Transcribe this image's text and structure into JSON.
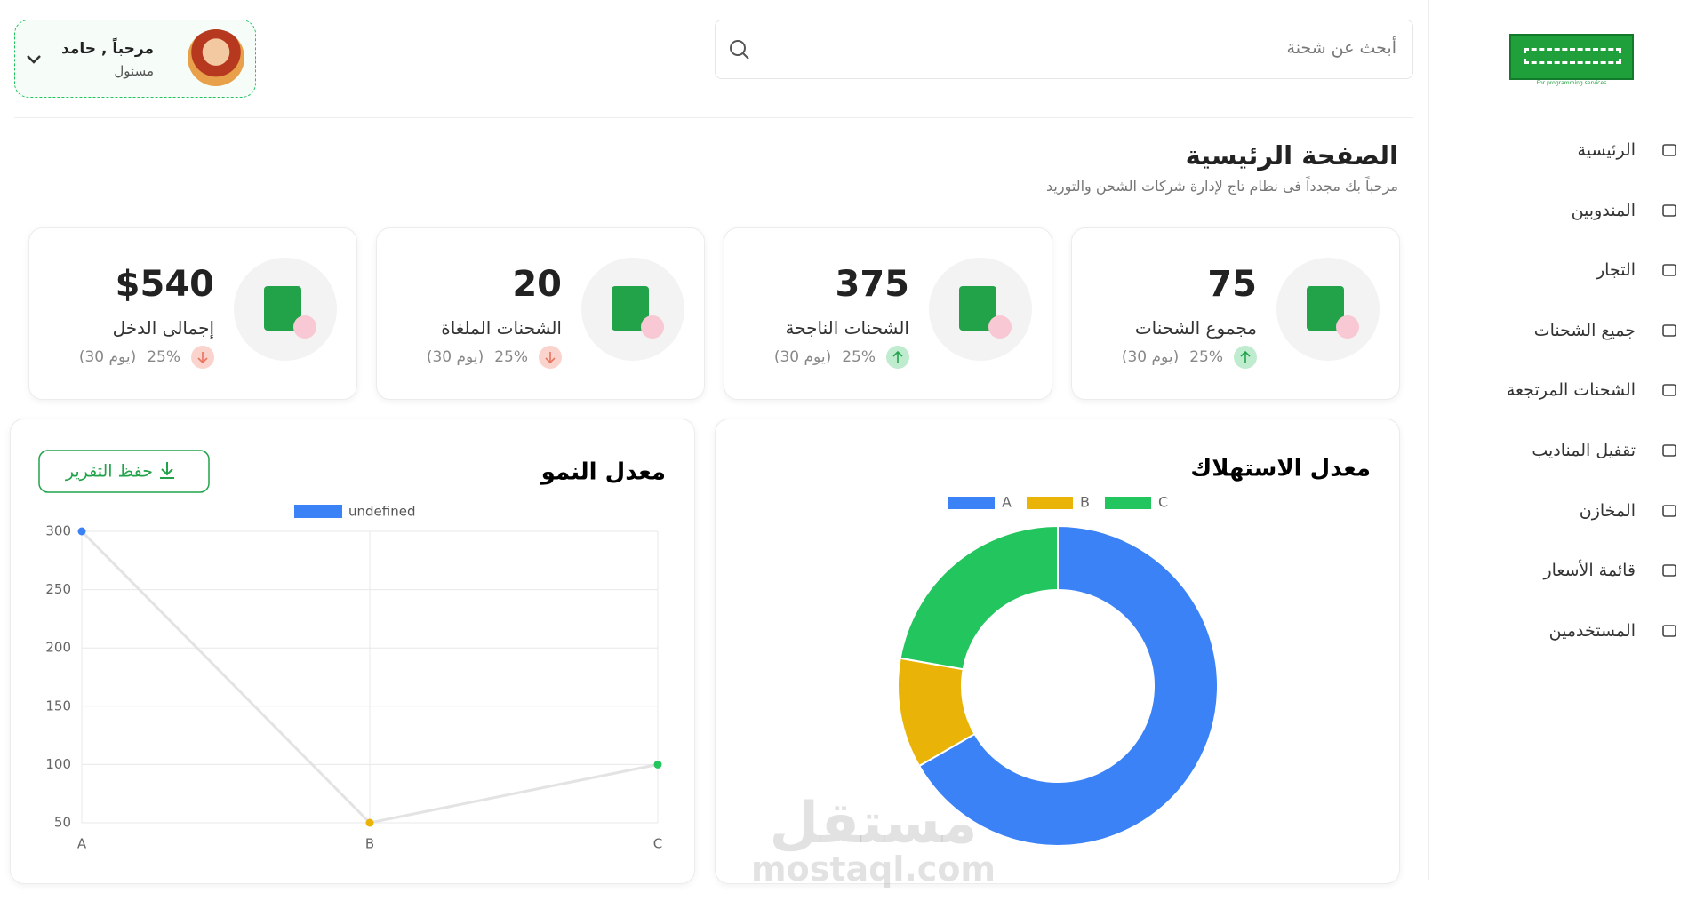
{
  "sidebar": {
    "logo_caption": "For programming services",
    "nav": [
      "الرئيسية",
      "المندوبين",
      "التجار",
      "جميع الشحنات",
      "الشحنات المرتجعة",
      "تقفيل المناديب",
      "المخازن",
      "قائمة الأسعار",
      "المستخدمين"
    ]
  },
  "header": {
    "search_placeholder": "أبحث عن شحنة",
    "user_name": "مرحباً , حامد",
    "user_role": "مسئول"
  },
  "page": {
    "title": "الصفحة الرئيسية",
    "subtitle": "مرحباً بك مجدداً فى نظام تاج لإدارة شركات الشحن والتوريد"
  },
  "stats": [
    {
      "value": "75",
      "label": "مجموع الشحنات",
      "change": "25%",
      "period": "(30 يوم)",
      "trend": "up"
    },
    {
      "value": "375",
      "label": "الشحنات الناجحة",
      "change": "25%",
      "period": "(30 يوم)",
      "trend": "up"
    },
    {
      "value": "20",
      "label": "الشحنات الملغاة",
      "change": "25%",
      "period": "(30 يوم)",
      "trend": "down"
    },
    {
      "value": "$540",
      "label": "إجمالى الدخل",
      "change": "25%",
      "period": "(30 يوم)",
      "trend": "down"
    }
  ],
  "chart_data": [
    {
      "type": "pie",
      "title": "معدل الاستهلاك",
      "categories": [
        "A",
        "B",
        "C"
      ],
      "values": [
        300,
        50,
        100
      ],
      "colors": [
        "#3b82f6",
        "#eab308",
        "#22c55e"
      ],
      "donut": true
    },
    {
      "type": "line",
      "title": "معدل النمو",
      "button": "حفظ التقرير",
      "categories": [
        "A",
        "B",
        "C"
      ],
      "series": [
        {
          "name": "undefined",
          "color": "#3b82f6",
          "values": [
            300,
            50,
            100
          ],
          "point_colors": [
            "#3b82f6",
            "#eab308",
            "#22c55e"
          ]
        }
      ],
      "line_color": "#e3e3e3",
      "ylim": [
        50,
        300
      ],
      "yticks": [
        50,
        100,
        150,
        200,
        250,
        300
      ],
      "grid": true
    }
  ],
  "watermark": {
    "arabic": "مستقل",
    "latin": "mostaql.com"
  }
}
